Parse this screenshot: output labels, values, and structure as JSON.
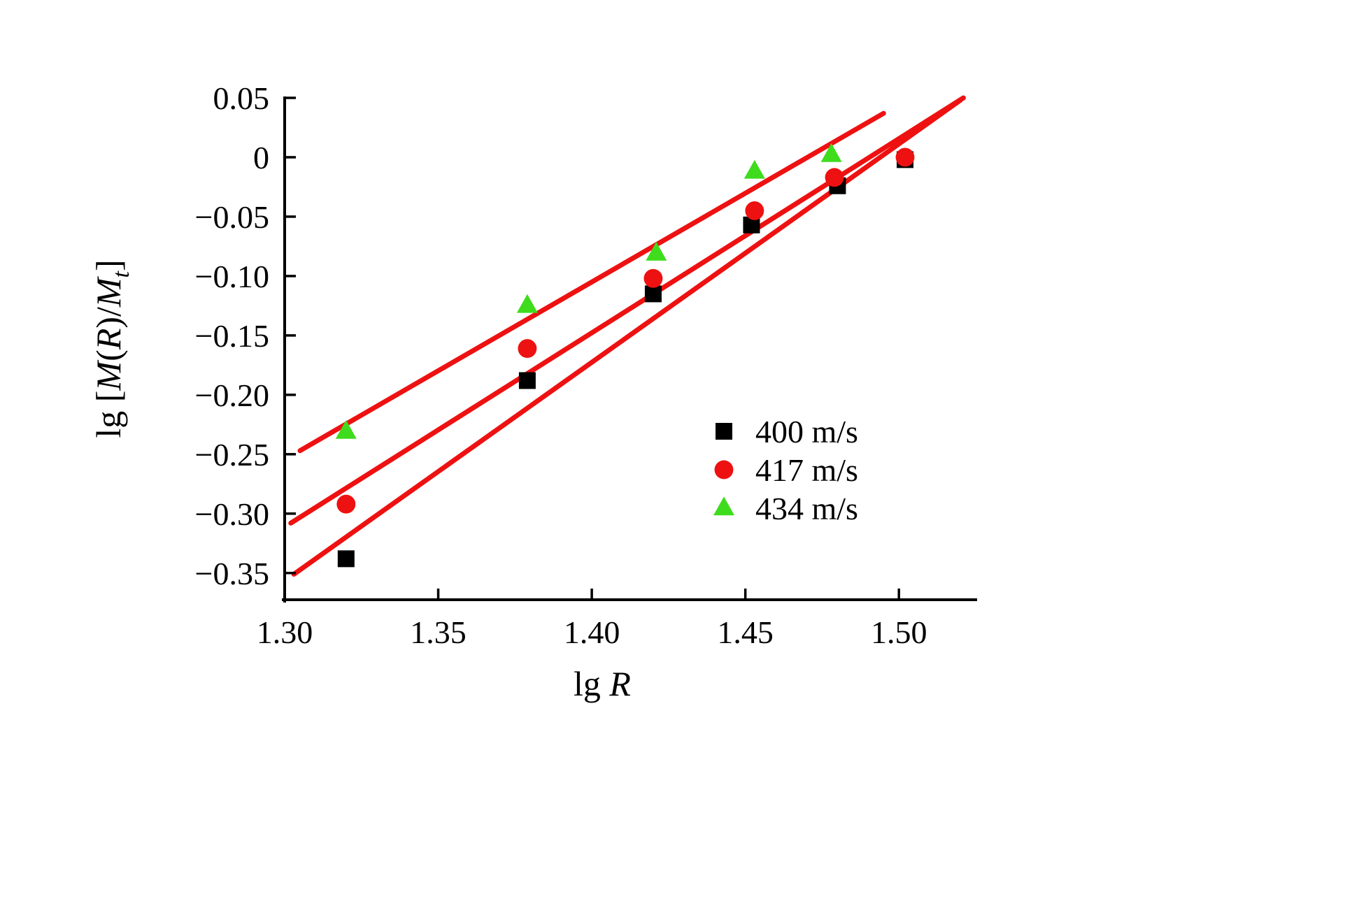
{
  "chart_data": {
    "type": "scatter",
    "title": "",
    "xlabel_parts": [
      {
        "t": "lg ",
        "i": false
      },
      {
        "t": "R",
        "i": true
      }
    ],
    "ylabel_parts": [
      {
        "t": "lg [",
        "i": false
      },
      {
        "t": "M",
        "i": true
      },
      {
        "t": "(",
        "i": false
      },
      {
        "t": "R",
        "i": true
      },
      {
        "t": ")/",
        "i": false
      },
      {
        "t": "M",
        "i": true
      },
      {
        "t": "t",
        "i": true,
        "sub": true
      },
      {
        "t": "]",
        "i": false
      }
    ],
    "xlim": [
      1.3,
      1.525
    ],
    "ylim": [
      -0.3725,
      0.05
    ],
    "grid": false,
    "xticks": [
      {
        "v": 1.3,
        "label": "1.30"
      },
      {
        "v": 1.35,
        "label": "1.35"
      },
      {
        "v": 1.4,
        "label": "1.40"
      },
      {
        "v": 1.45,
        "label": "1.45"
      },
      {
        "v": 1.5,
        "label": "1.50"
      }
    ],
    "yticks": [
      {
        "v": 0.05,
        "label": "0.05"
      },
      {
        "v": 0.0,
        "label": "0"
      },
      {
        "v": -0.05,
        "label": "−0.05"
      },
      {
        "v": -0.1,
        "label": "−0.10"
      },
      {
        "v": -0.15,
        "label": "−0.15"
      },
      {
        "v": -0.2,
        "label": "−0.20"
      },
      {
        "v": -0.25,
        "label": "−0.25"
      },
      {
        "v": -0.3,
        "label": "−0.30"
      },
      {
        "v": -0.35,
        "label": "−0.35"
      }
    ],
    "series": [
      {
        "name": "400 m/s",
        "marker": "square",
        "color": "#000000",
        "points": [
          [
            1.32,
            -0.338
          ],
          [
            1.379,
            -0.188
          ],
          [
            1.42,
            -0.115
          ],
          [
            1.452,
            -0.057
          ],
          [
            1.48,
            -0.024
          ],
          [
            1.502,
            -0.002
          ]
        ]
      },
      {
        "name": "417 m/s",
        "marker": "circle",
        "color": "#ee1111",
        "points": [
          [
            1.32,
            -0.292
          ],
          [
            1.379,
            -0.161
          ],
          [
            1.42,
            -0.102
          ],
          [
            1.453,
            -0.045
          ],
          [
            1.479,
            -0.017
          ],
          [
            1.502,
            0.0
          ]
        ]
      },
      {
        "name": "434 m/s",
        "marker": "triangle",
        "color": "#3fdc1e",
        "points": [
          [
            1.32,
            -0.231
          ],
          [
            1.379,
            -0.125
          ],
          [
            1.421,
            -0.081
          ],
          [
            1.453,
            -0.012
          ],
          [
            1.478,
            0.002
          ]
        ]
      }
    ],
    "fit_lines": [
      {
        "x1": 1.305,
        "y1": -0.247,
        "x2": 1.495,
        "y2": 0.037
      },
      {
        "x1": 1.302,
        "y1": -0.308,
        "x2": 1.521,
        "y2": 0.05
      },
      {
        "x1": 1.303,
        "y1": -0.351,
        "x2": 1.52,
        "y2": 0.048
      }
    ],
    "colors": {
      "axis": "#000000",
      "fit_line": "#ee1111"
    },
    "legend": {
      "position": "bottom-right",
      "entries": [
        {
          "label": "400 m/s",
          "marker": "square",
          "color": "#000000"
        },
        {
          "label": "417 m/s",
          "marker": "circle",
          "color": "#ee1111"
        },
        {
          "label": "434 m/s",
          "marker": "triangle",
          "color": "#3fdc1e"
        }
      ]
    }
  }
}
